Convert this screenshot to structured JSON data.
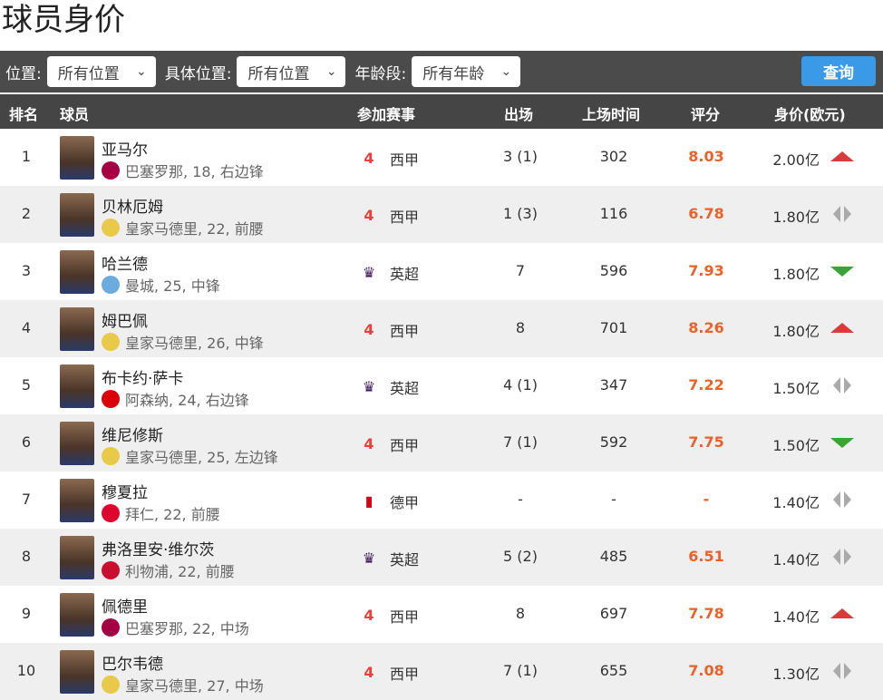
{
  "title": "球员身价",
  "filters": [
    {
      "label": "位置:",
      "value": "所有位置"
    },
    {
      "label": "具体位置:",
      "value": "所有位置"
    },
    {
      "label": "年龄段:",
      "value": "所有年龄"
    }
  ],
  "search_label": "查询",
  "headers": {
    "rank": "排名",
    "player": "球员",
    "league": "参加赛事",
    "apps": "出场",
    "minutes": "上场时间",
    "rating": "评分",
    "value": "身价(欧元)"
  },
  "colors": {
    "up": "#d93a3a",
    "down": "#3aa43a",
    "flat": "#aaaaaa",
    "rating": "#e8622a",
    "button": "#3b9ae8"
  },
  "rows": [
    {
      "rank": "1",
      "name": "亚马尔",
      "club": "巴塞罗那, 18, 右边锋",
      "club_icon": "barcelona",
      "league": "西甲",
      "league_icon": "laliga",
      "apps": "3 (1)",
      "minutes": "302",
      "rating": "8.03",
      "value": "2.00亿",
      "trend": "up"
    },
    {
      "rank": "2",
      "name": "贝林厄姆",
      "club": "皇家马德里, 22, 前腰",
      "club_icon": "real-madrid",
      "league": "西甲",
      "league_icon": "laliga",
      "apps": "1 (3)",
      "minutes": "116",
      "rating": "6.78",
      "value": "1.80亿",
      "trend": "flat"
    },
    {
      "rank": "3",
      "name": "哈兰德",
      "club": "曼城, 25, 中锋",
      "club_icon": "man-city",
      "league": "英超",
      "league_icon": "premier-league",
      "apps": "7",
      "minutes": "596",
      "rating": "7.93",
      "value": "1.80亿",
      "trend": "down"
    },
    {
      "rank": "4",
      "name": "姆巴佩",
      "club": "皇家马德里, 26, 中锋",
      "club_icon": "real-madrid",
      "league": "西甲",
      "league_icon": "laliga",
      "apps": "8",
      "minutes": "701",
      "rating": "8.26",
      "value": "1.80亿",
      "trend": "up"
    },
    {
      "rank": "5",
      "name": "布卡约·萨卡",
      "club": "阿森纳, 24, 右边锋",
      "club_icon": "arsenal",
      "league": "英超",
      "league_icon": "premier-league",
      "apps": "4 (1)",
      "minutes": "347",
      "rating": "7.22",
      "value": "1.50亿",
      "trend": "flat"
    },
    {
      "rank": "6",
      "name": "维尼修斯",
      "club": "皇家马德里, 25, 左边锋",
      "club_icon": "real-madrid",
      "league": "西甲",
      "league_icon": "laliga",
      "apps": "7 (1)",
      "minutes": "592",
      "rating": "7.75",
      "value": "1.50亿",
      "trend": "down"
    },
    {
      "rank": "7",
      "name": "穆夏拉",
      "club": "拜仁, 22, 前腰",
      "club_icon": "bayern",
      "league": "德甲",
      "league_icon": "bundesliga",
      "apps": "-",
      "minutes": "-",
      "rating": "-",
      "value": "1.40亿",
      "trend": "flat"
    },
    {
      "rank": "8",
      "name": "弗洛里安·维尔茨",
      "club": "利物浦, 22, 前腰",
      "club_icon": "liverpool",
      "league": "英超",
      "league_icon": "premier-league",
      "apps": "5 (2)",
      "minutes": "485",
      "rating": "6.51",
      "value": "1.40亿",
      "trend": "flat"
    },
    {
      "rank": "9",
      "name": "佩德里",
      "club": "巴塞罗那, 22, 中场",
      "club_icon": "barcelona",
      "league": "西甲",
      "league_icon": "laliga",
      "apps": "8",
      "minutes": "697",
      "rating": "7.78",
      "value": "1.40亿",
      "trend": "up"
    },
    {
      "rank": "10",
      "name": "巴尔韦德",
      "club": "皇家马德里, 27, 中场",
      "club_icon": "real-madrid",
      "league": "西甲",
      "league_icon": "laliga",
      "apps": "7 (1)",
      "minutes": "655",
      "rating": "7.08",
      "value": "1.30亿",
      "trend": "flat"
    }
  ]
}
